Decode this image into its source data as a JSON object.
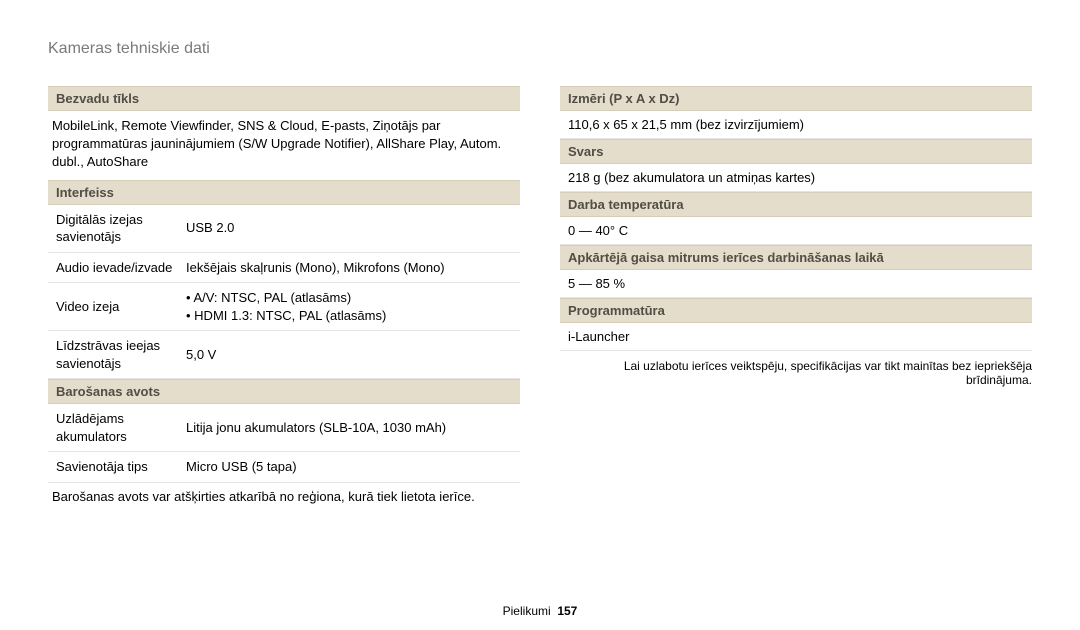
{
  "title": "Kameras tehniskie dati",
  "left": {
    "wireless": {
      "head": "Bezvadu tīkls",
      "text": "MobileLink, Remote Viewfinder, SNS & Cloud, E-pasts, Ziņotājs par programmatūras jauninājumiem (S/W Upgrade Notifier), AllShare Play, Autom. dubl., AutoShare"
    },
    "interface": {
      "head": "Interfeiss",
      "rows": {
        "r0k": "Digitālās izejas savienotājs",
        "r0v": "USB 2.0",
        "r1k": "Audio ievade/izvade",
        "r1v": "Iekšējais skaļrunis (Mono), Mikrofons (Mono)",
        "r2k": "Video izeja",
        "r2v_b0": "A/V: NTSC, PAL (atlasāms)",
        "r2v_b1": "HDMI 1.3: NTSC, PAL (atlasāms)",
        "r3k": "Līdzstrāvas ieejas savienotājs",
        "r3v": "5,0 V"
      }
    },
    "power": {
      "head": "Barošanas avots",
      "rows": {
        "r0k": "Uzlādējams akumulators",
        "r0v": "Litija jonu akumulators (SLB-10A, 1030 mAh)",
        "r1k": "Savienotāja tips",
        "r1v": "Micro USB (5 tapa)"
      },
      "note": "Barošanas avots var atšķirties atkarībā no reģiona, kurā tiek lietota ierīce."
    }
  },
  "right": {
    "dimensions": {
      "head": "Izmēri (P x A x Dz)",
      "value": "110,6 x 65 x 21,5 mm (bez izvirzījumiem)"
    },
    "weight": {
      "head": "Svars",
      "value": "218 g (bez akumulatora un atmiņas kartes)"
    },
    "temp": {
      "head": "Darba temperatūra",
      "value": "0 — 40° C"
    },
    "humidity": {
      "head": "Apkārtējā gaisa mitrums ierīces darbināšanas laikā",
      "value": "5 — 85 %"
    },
    "software": {
      "head": "Programmatūra",
      "value": "i-Launcher"
    },
    "footnote": "Lai uzlabotu ierīces veiktspēju, specifikācijas var tikt mainītas bez iepriekšēja brīdinājuma."
  },
  "footer": {
    "label": "Pielikumi",
    "page": "157"
  },
  "colors": {
    "head_bg": "#e5ddcb",
    "head_text": "#524d45",
    "title_color": "#7a7a7a",
    "row_border": "#e5e5e5"
  }
}
